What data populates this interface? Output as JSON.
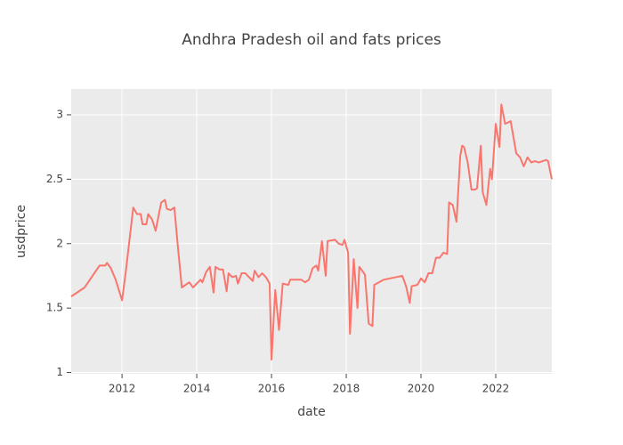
{
  "chart_data": {
    "type": "line",
    "title": "Andhra Pradesh oil and fats prices",
    "x_label": "date",
    "y_label": "usdprice",
    "color": "#f8766d",
    "grid": true,
    "xlim": [
      2010.64,
      2023.5
    ],
    "ylim": [
      0.99,
      3.2
    ],
    "xticks": [
      2012,
      2014,
      2016,
      2018,
      2020,
      2022
    ],
    "yticks": [
      1,
      1.5,
      2,
      2.5,
      3
    ],
    "x": [
      2010.64,
      2011.0,
      2011.4,
      2011.55,
      2011.6,
      2011.7,
      2011.83,
      2012.0,
      2012.1,
      2012.3,
      2012.4,
      2012.5,
      2012.55,
      2012.65,
      2012.7,
      2012.8,
      2012.9,
      2013.0,
      2013.05,
      2013.15,
      2013.2,
      2013.3,
      2013.4,
      2013.5,
      2013.6,
      2013.8,
      2013.9,
      2014.1,
      2014.15,
      2014.25,
      2014.35,
      2014.45,
      2014.5,
      2014.6,
      2014.7,
      2014.8,
      2014.85,
      2014.95,
      2015.05,
      2015.1,
      2015.2,
      2015.3,
      2015.4,
      2015.5,
      2015.55,
      2015.65,
      2015.75,
      2015.85,
      2015.95,
      2016.0,
      2016.1,
      2016.2,
      2016.3,
      2016.45,
      2016.5,
      2016.8,
      2016.9,
      2017.0,
      2017.1,
      2017.2,
      2017.25,
      2017.35,
      2017.45,
      2017.5,
      2017.7,
      2017.8,
      2017.9,
      2017.95,
      2018.05,
      2018.1,
      2018.2,
      2018.3,
      2018.35,
      2018.5,
      2018.6,
      2018.7,
      2018.75,
      2019.0,
      2019.5,
      2019.6,
      2019.7,
      2019.75,
      2019.9,
      2020.0,
      2020.1,
      2020.2,
      2020.3,
      2020.4,
      2020.5,
      2020.6,
      2020.7,
      2020.75,
      2020.85,
      2020.95,
      2021.05,
      2021.1,
      2021.15,
      2021.25,
      2021.35,
      2021.45,
      2021.5,
      2021.6,
      2021.65,
      2021.75,
      2021.85,
      2021.9,
      2022.0,
      2022.1,
      2022.15,
      2022.25,
      2022.4,
      2022.55,
      2022.65,
      2022.75,
      2022.85,
      2022.95,
      2023.05,
      2023.15,
      2023.25,
      2023.35,
      2023.4,
      2023.5
    ],
    "values": [
      1.59,
      1.66,
      1.83,
      1.83,
      1.85,
      1.81,
      1.72,
      1.56,
      1.78,
      2.28,
      2.23,
      2.23,
      2.15,
      2.15,
      2.23,
      2.19,
      2.1,
      2.25,
      2.32,
      2.34,
      2.27,
      2.26,
      2.28,
      1.96,
      1.66,
      1.7,
      1.66,
      1.72,
      1.7,
      1.78,
      1.82,
      1.62,
      1.82,
      1.8,
      1.8,
      1.63,
      1.77,
      1.74,
      1.75,
      1.69,
      1.77,
      1.77,
      1.74,
      1.71,
      1.79,
      1.74,
      1.77,
      1.74,
      1.69,
      1.1,
      1.64,
      1.33,
      1.69,
      1.68,
      1.72,
      1.72,
      1.7,
      1.72,
      1.81,
      1.83,
      1.79,
      2.02,
      1.75,
      2.02,
      2.03,
      2.0,
      1.99,
      2.03,
      1.93,
      1.3,
      1.88,
      1.5,
      1.82,
      1.76,
      1.38,
      1.36,
      1.68,
      1.72,
      1.75,
      1.67,
      1.54,
      1.67,
      1.68,
      1.73,
      1.7,
      1.77,
      1.77,
      1.89,
      1.89,
      1.93,
      1.92,
      2.32,
      2.3,
      2.17,
      2.68,
      2.76,
      2.75,
      2.63,
      2.42,
      2.42,
      2.43,
      2.76,
      2.4,
      2.3,
      2.58,
      2.5,
      2.93,
      2.75,
      3.08,
      2.93,
      2.95,
      2.7,
      2.67,
      2.6,
      2.67,
      2.63,
      2.64,
      2.63,
      2.64,
      2.65,
      2.64,
      2.5
    ]
  }
}
